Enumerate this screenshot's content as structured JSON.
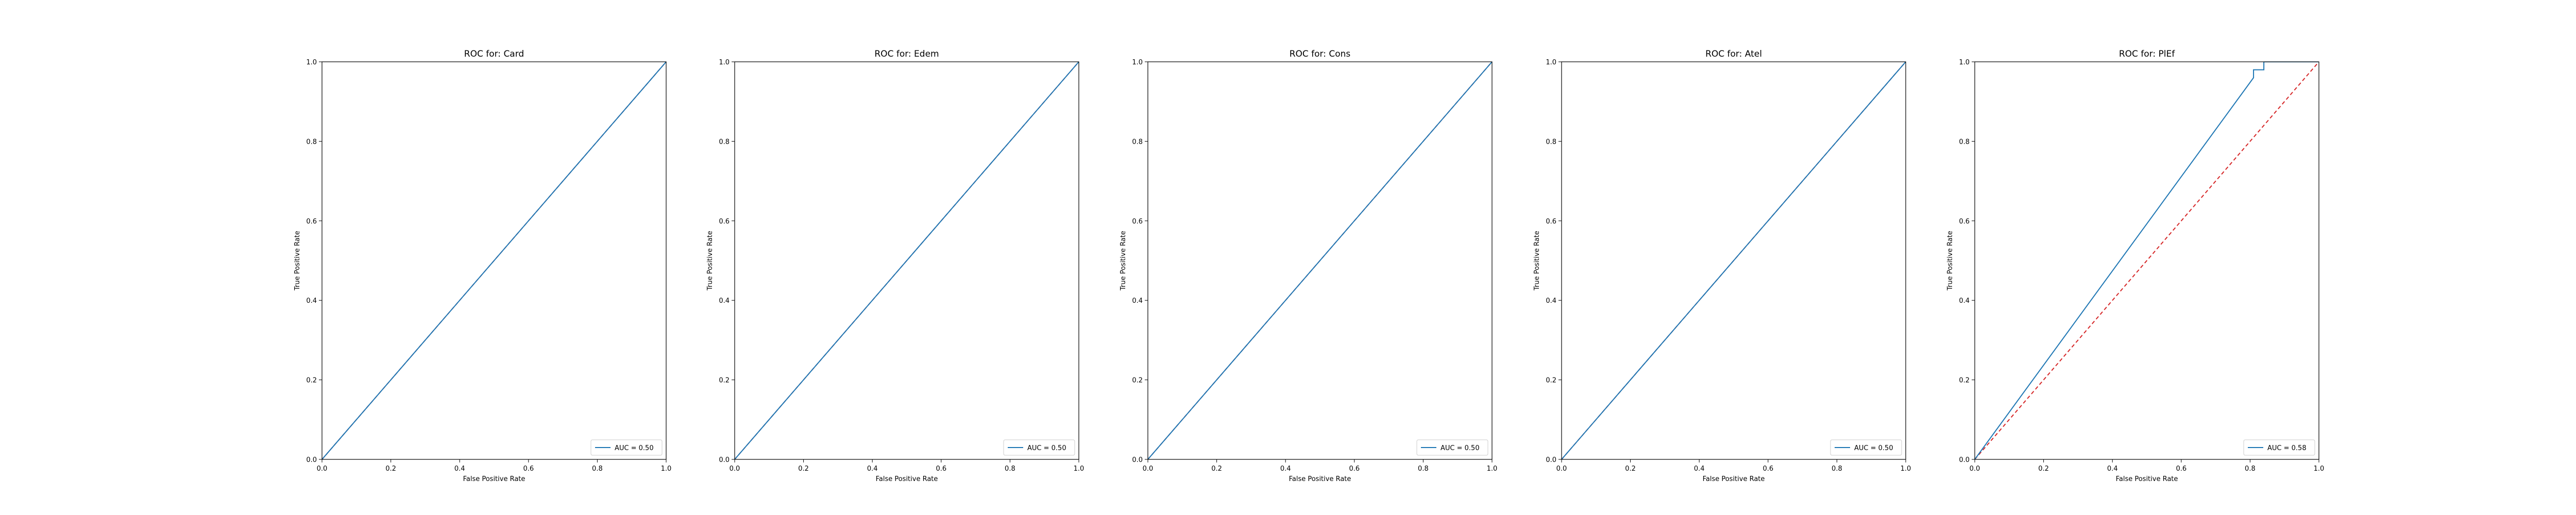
{
  "chart_data": [
    {
      "type": "line",
      "title": "ROC for: Card",
      "xlabel": "False Positive Rate",
      "ylabel": "True Positive Rate",
      "xlim": [
        0,
        1
      ],
      "ylim": [
        0,
        1
      ],
      "x_ticks": [
        "0.0",
        "0.2",
        "0.4",
        "0.6",
        "0.8",
        "1.0"
      ],
      "y_ticks": [
        "0.0",
        "0.2",
        "0.4",
        "0.6",
        "0.8",
        "1.0"
      ],
      "grid": false,
      "legend_position": "lower right",
      "series": [
        {
          "name": "AUC = 0.50",
          "color": "#1f77b4",
          "style": "solid",
          "x": [
            0,
            1
          ],
          "y": [
            0,
            1
          ]
        }
      ],
      "reference": {
        "color": "#d62728",
        "style": "dashed",
        "x": [
          0,
          1
        ],
        "y": [
          0,
          1
        ]
      }
    },
    {
      "type": "line",
      "title": "ROC for: Edem",
      "xlabel": "False Positive Rate",
      "ylabel": "True Positive Rate",
      "xlim": [
        0,
        1
      ],
      "ylim": [
        0,
        1
      ],
      "x_ticks": [
        "0.0",
        "0.2",
        "0.4",
        "0.6",
        "0.8",
        "1.0"
      ],
      "y_ticks": [
        "0.0",
        "0.2",
        "0.4",
        "0.6",
        "0.8",
        "1.0"
      ],
      "grid": false,
      "legend_position": "lower right",
      "series": [
        {
          "name": "AUC = 0.50",
          "color": "#1f77b4",
          "style": "solid",
          "x": [
            0,
            1
          ],
          "y": [
            0,
            1
          ]
        }
      ],
      "reference": {
        "color": "#d62728",
        "style": "dashed",
        "x": [
          0,
          1
        ],
        "y": [
          0,
          1
        ]
      }
    },
    {
      "type": "line",
      "title": "ROC for: Cons",
      "xlabel": "False Positive Rate",
      "ylabel": "True Positive Rate",
      "xlim": [
        0,
        1
      ],
      "ylim": [
        0,
        1
      ],
      "x_ticks": [
        "0.0",
        "0.2",
        "0.4",
        "0.6",
        "0.8",
        "1.0"
      ],
      "y_ticks": [
        "0.0",
        "0.2",
        "0.4",
        "0.6",
        "0.8",
        "1.0"
      ],
      "grid": false,
      "legend_position": "lower right",
      "series": [
        {
          "name": "AUC = 0.50",
          "color": "#1f77b4",
          "style": "solid",
          "x": [
            0,
            1
          ],
          "y": [
            0,
            1
          ]
        }
      ],
      "reference": {
        "color": "#d62728",
        "style": "dashed",
        "x": [
          0,
          1
        ],
        "y": [
          0,
          1
        ]
      }
    },
    {
      "type": "line",
      "title": "ROC for: Atel",
      "xlabel": "False Positive Rate",
      "ylabel": "True Positive Rate",
      "xlim": [
        0,
        1
      ],
      "ylim": [
        0,
        1
      ],
      "x_ticks": [
        "0.0",
        "0.2",
        "0.4",
        "0.6",
        "0.8",
        "1.0"
      ],
      "y_ticks": [
        "0.0",
        "0.2",
        "0.4",
        "0.6",
        "0.8",
        "1.0"
      ],
      "grid": false,
      "legend_position": "lower right",
      "series": [
        {
          "name": "AUC = 0.50",
          "color": "#1f77b4",
          "style": "solid",
          "x": [
            0,
            1
          ],
          "y": [
            0,
            1
          ]
        }
      ],
      "reference": {
        "color": "#d62728",
        "style": "dashed",
        "x": [
          0,
          1
        ],
        "y": [
          0,
          1
        ]
      }
    },
    {
      "type": "line",
      "title": "ROC for: PlEf",
      "xlabel": "False Positive Rate",
      "ylabel": "True Positive Rate",
      "xlim": [
        0,
        1
      ],
      "ylim": [
        0,
        1
      ],
      "x_ticks": [
        "0.0",
        "0.2",
        "0.4",
        "0.6",
        "0.8",
        "1.0"
      ],
      "y_ticks": [
        "0.0",
        "0.2",
        "0.4",
        "0.6",
        "0.8",
        "1.0"
      ],
      "grid": false,
      "legend_position": "lower right",
      "series": [
        {
          "name": "AUC = 0.58",
          "color": "#1f77b4",
          "style": "solid",
          "x": [
            0,
            0.81,
            0.81,
            0.84,
            0.84,
            1.0
          ],
          "y": [
            0,
            0.96,
            0.98,
            0.98,
            1.0,
            1.0
          ]
        }
      ],
      "reference": {
        "color": "#d62728",
        "style": "dashed",
        "x": [
          0,
          1
        ],
        "y": [
          0,
          1
        ]
      }
    }
  ]
}
